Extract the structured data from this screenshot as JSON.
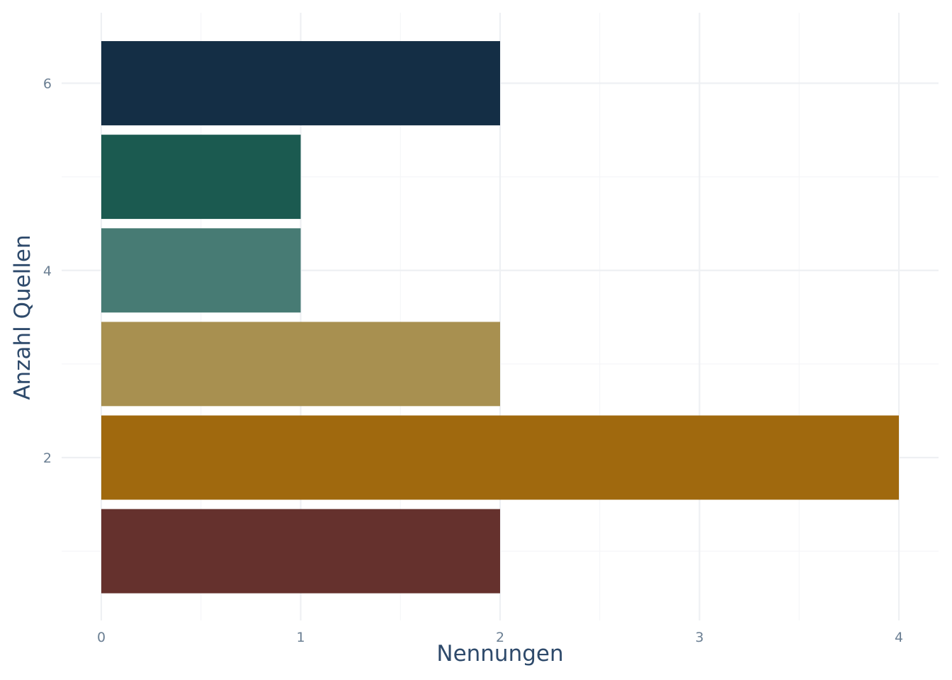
{
  "chart_data": {
    "type": "bar",
    "orientation": "horizontal",
    "xlabel": "Nennungen",
    "ylabel": "Anzahl Quellen",
    "xlim": [
      0,
      4
    ],
    "ylim": [
      0.4,
      6.6
    ],
    "x_ticks": [
      "0",
      "1",
      "2",
      "3",
      "4"
    ],
    "y_ticks": [
      "2",
      "4",
      "6"
    ],
    "grid": true,
    "legend": "none",
    "bars": [
      {
        "category": 1,
        "value": 2,
        "color": "#65312d"
      },
      {
        "category": 2,
        "value": 4,
        "color": "#a0690e"
      },
      {
        "category": 3,
        "value": 2,
        "color": "#a89050"
      },
      {
        "category": 4,
        "value": 1,
        "color": "#477b74"
      },
      {
        "category": 5,
        "value": 1,
        "color": "#1b5a50"
      },
      {
        "category": 6,
        "value": 2,
        "color": "#142e45"
      }
    ]
  }
}
